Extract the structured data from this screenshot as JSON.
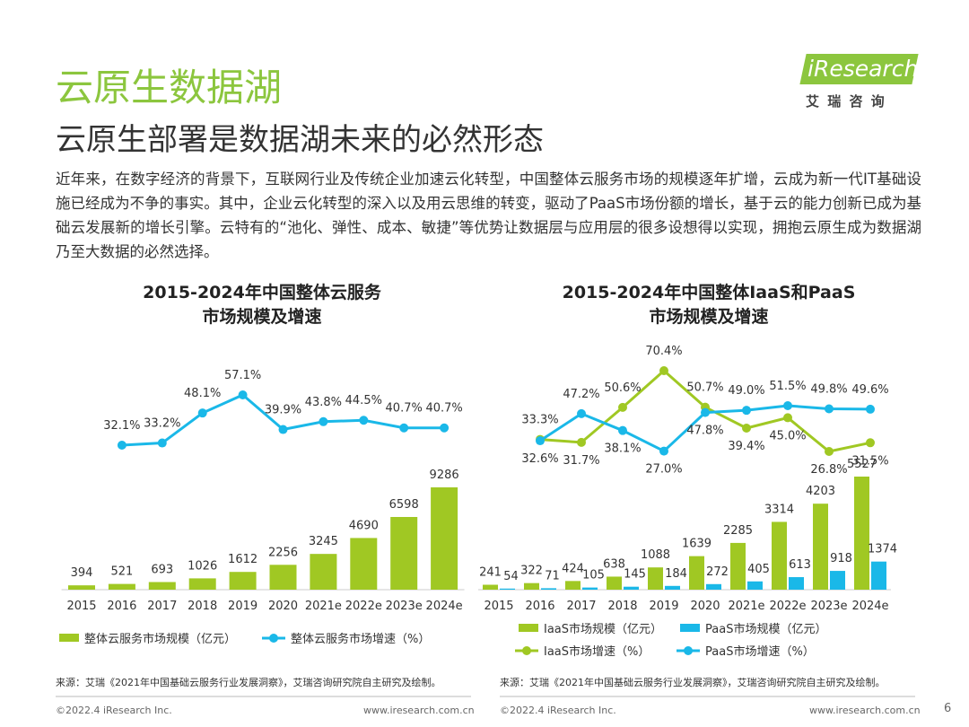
{
  "header": {
    "title": "云原生数据湖",
    "subtitle": "云原生部署是数据湖未来的必然形态",
    "logo": "iResearch",
    "logo_cn": "艾 瑞 咨 询"
  },
  "paragraph": "近年来，在数字经济的背景下，互联网行业及传统企业加速云化转型，中国整体云服务市场的规模逐年扩增，云成为新一代IT基础设施已经成为不争的事实。其中，企业云化转型的深入以及用云思维的转变，驱动了PaaS市场份额的增长，基于云的能力创新已成为基础云发展新的增长引擎。云特有的“池化、弹性、成本、敏捷”等优势让数据层与应用层的很多设想得以实现，拥抱云原生成为数据湖乃至大数据的必然选择。",
  "chart_data": [
    {
      "type": "bar_line",
      "title": "2015-2024年中国整体云服务\n市场规模及增速",
      "categories": [
        "2015",
        "2016",
        "2017",
        "2018",
        "2019",
        "2020",
        "2021e",
        "2022e",
        "2023e",
        "2024e"
      ],
      "series": [
        {
          "name": "整体云服务市场规模（亿元）",
          "type": "bar",
          "color": "#a0c823",
          "values": [
            394,
            521,
            693,
            1026,
            1612,
            2256,
            3245,
            4690,
            6598,
            9286
          ]
        },
        {
          "name": "整体云服务市场增速（%）",
          "type": "line",
          "axis": "y2",
          "color": "#1ab8e8",
          "values": [
            null,
            32.1,
            33.2,
            48.1,
            57.1,
            39.9,
            43.8,
            44.5,
            40.7,
            40.7
          ],
          "value_labels": [
            null,
            "32.1%",
            "33.2%",
            "48.1%",
            "57.1%",
            "39.9%",
            "43.8%",
            "44.5%",
            "40.7%",
            "40.7%"
          ]
        }
      ],
      "source": "来源：艾瑞《2021年中国基础云服务行业发展洞察》，艾瑞咨询研究院自主研究及绘制。"
    },
    {
      "type": "bar_line",
      "title": "2015-2024年中国整体IaaS和PaaS\n市场规模及增速",
      "categories": [
        "2015",
        "2016",
        "2017",
        "2018",
        "2019",
        "2020",
        "2021e",
        "2022e",
        "2023e",
        "2024e"
      ],
      "series": [
        {
          "name": "IaaS市场规模（亿元）",
          "type": "bar",
          "color": "#a0c823",
          "values": [
            241,
            322,
            424,
            638,
            1088,
            1639,
            2285,
            3314,
            4203,
            5527
          ]
        },
        {
          "name": "PaaS市场规模（亿元）",
          "type": "bar",
          "color": "#1ab8e8",
          "values": [
            54,
            71,
            105,
            145,
            184,
            272,
            405,
            613,
            918,
            1374
          ]
        },
        {
          "name": "IaaS市场增速（%）",
          "type": "line",
          "axis": "y2",
          "color": "#a0c823",
          "values": [
            null,
            33.3,
            31.7,
            50.6,
            70.4,
            50.7,
            39.4,
            45.0,
            26.8,
            31.5
          ],
          "value_labels": [
            null,
            "33.3%",
            "31.7%",
            "50.6%",
            "70.4%",
            "50.7%",
            "39.4%",
            "45.0%",
            "26.8%",
            "31.5%"
          ]
        },
        {
          "name": "PaaS市场增速（%）",
          "type": "line",
          "axis": "y2",
          "color": "#1ab8e8",
          "values": [
            null,
            32.6,
            47.2,
            38.1,
            27.0,
            47.8,
            49.0,
            51.5,
            49.8,
            49.6
          ],
          "value_labels": [
            null,
            "32.6%",
            "47.2%",
            "38.1%",
            "27.0%",
            "47.8%",
            "49.0%",
            "51.5%",
            "49.8%",
            "49.6%"
          ]
        }
      ],
      "source": "来源：艾瑞《2021年中国基础云服务行业发展洞察》，艾瑞咨询研究院自主研究及绘制。"
    }
  ],
  "footer": {
    "copyright": "©2022.4 iResearch Inc.",
    "url": "www.iresearch.com.cn",
    "page": "6"
  }
}
